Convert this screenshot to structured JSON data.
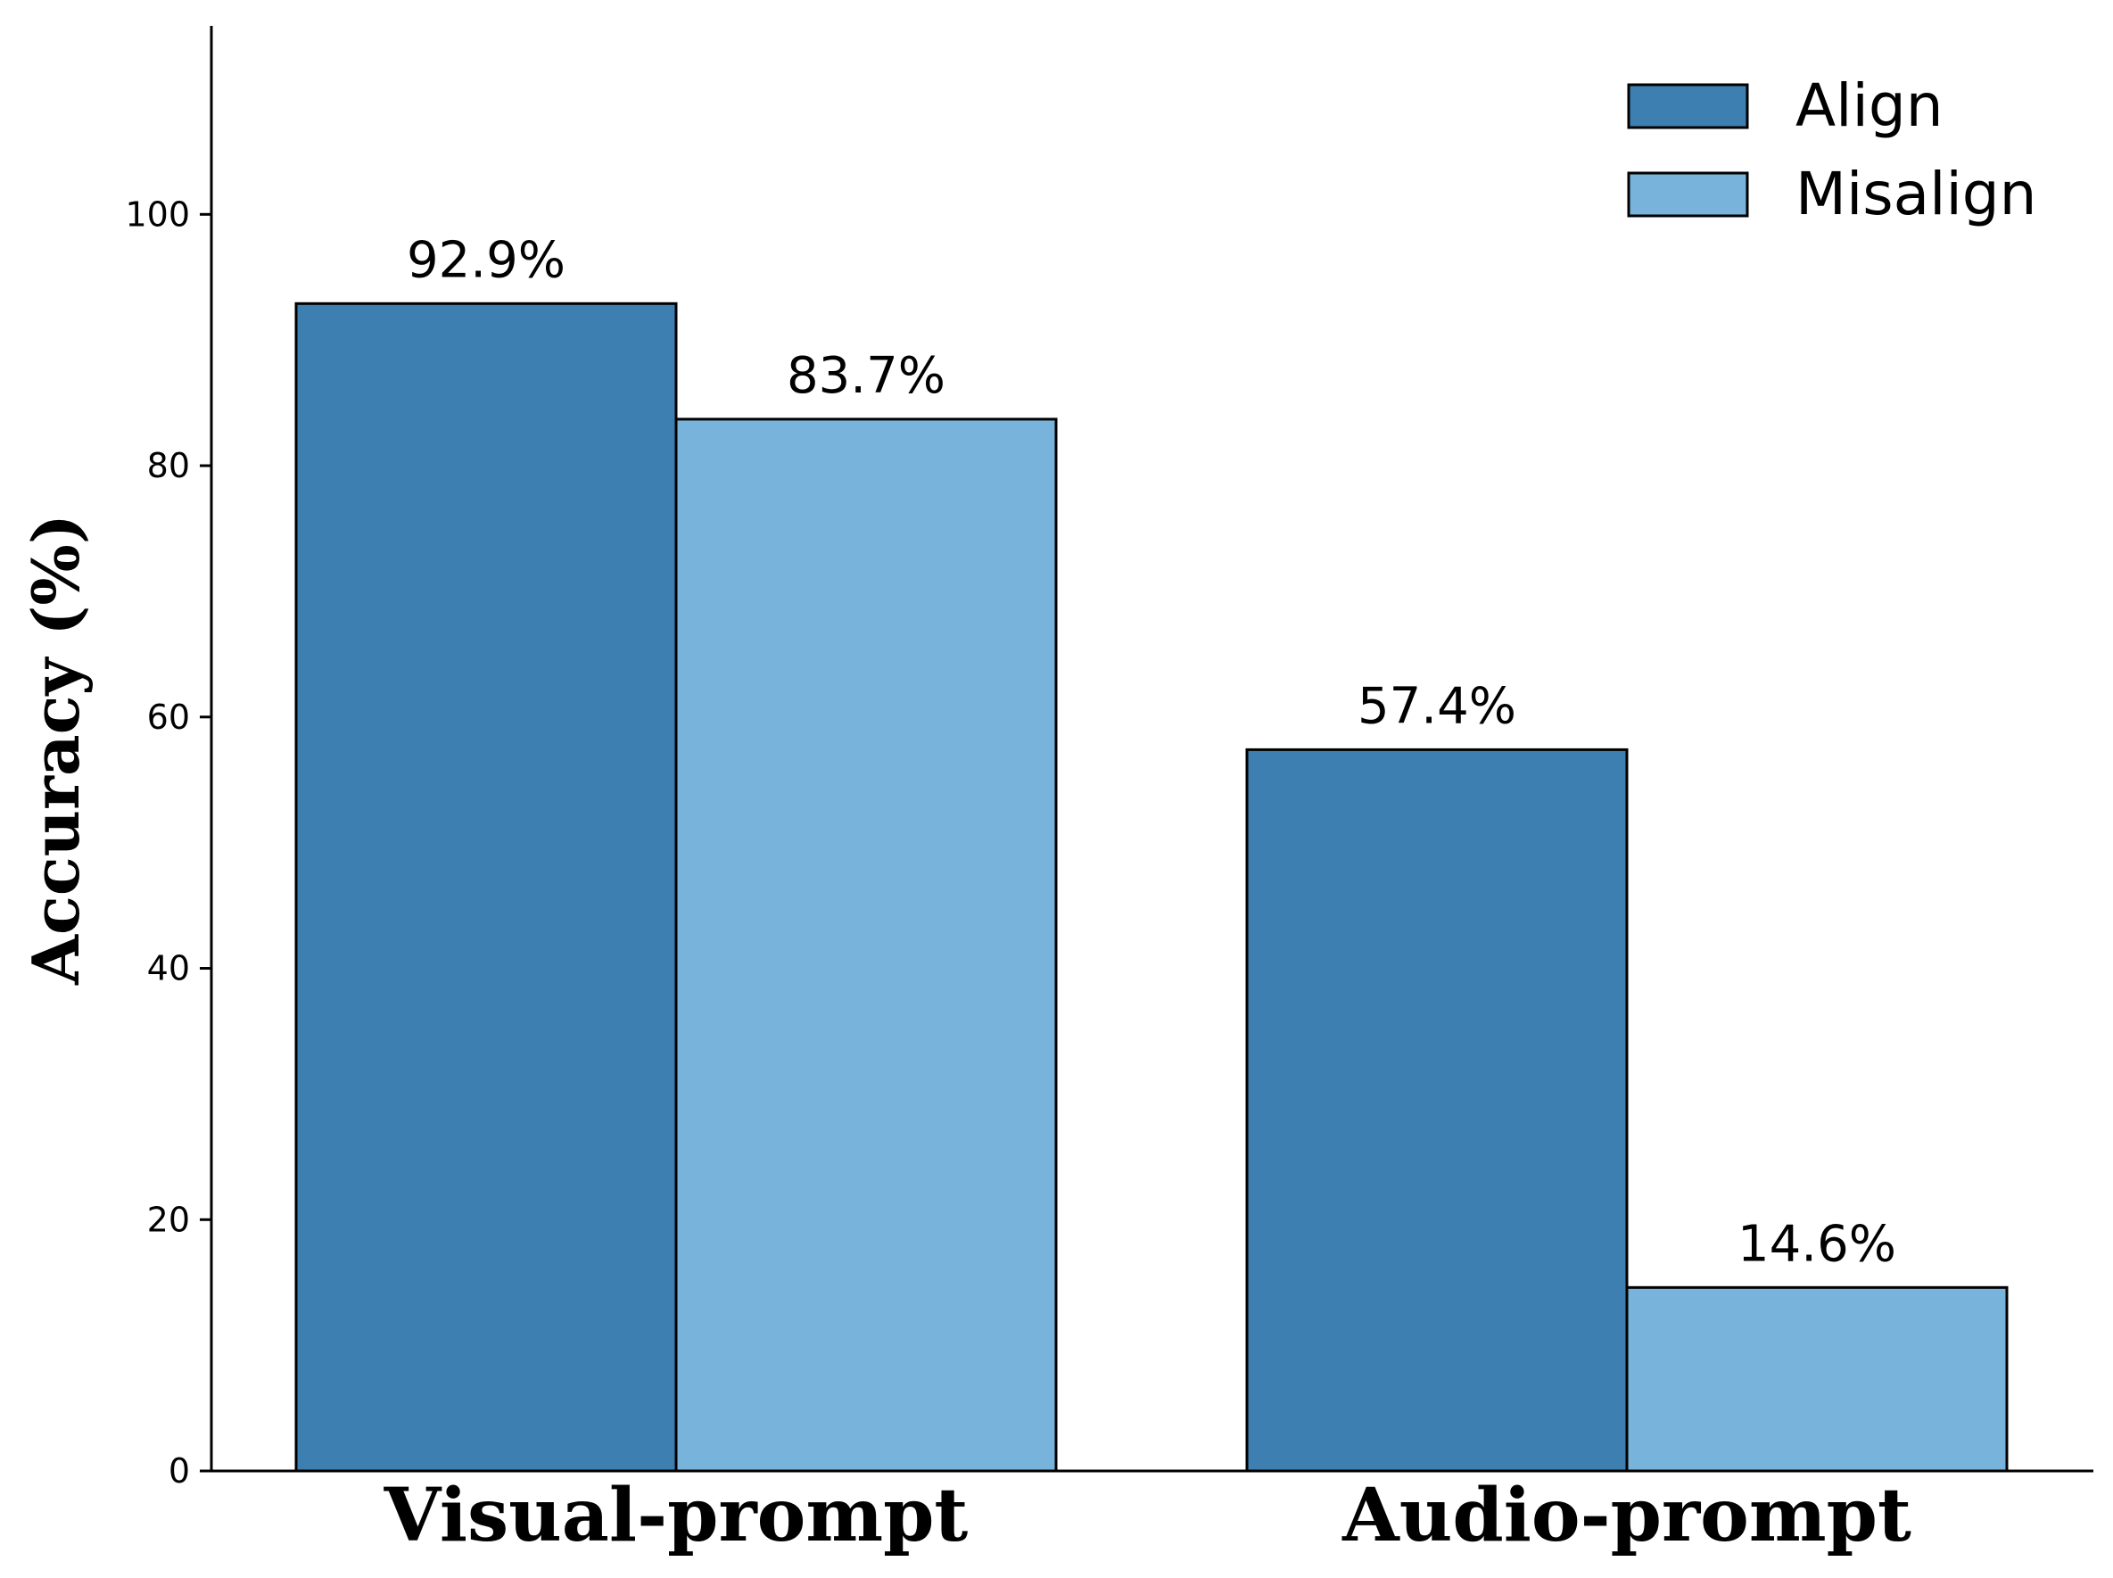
{
  "chart_data": {
    "type": "bar",
    "categories": [
      "Visual-prompt",
      "Audio-prompt"
    ],
    "series": [
      {
        "name": "Align",
        "values": [
          92.9,
          57.4
        ],
        "labels": [
          "92.9%",
          "57.4%"
        ],
        "color": "#3d7fb0"
      },
      {
        "name": "Misalign",
        "values": [
          83.7,
          14.6
        ],
        "labels": [
          "83.7%",
          "14.6%"
        ],
        "color": "#77b3da"
      }
    ],
    "ylabel": "Accuracy (%)",
    "ylim": [
      0,
      115
    ],
    "yticks": [
      0,
      20,
      40,
      60,
      80,
      100
    ],
    "ytick_labels": [
      "0",
      "20",
      "40",
      "60",
      "80",
      "100"
    ],
    "legend_position": "top-right",
    "grid": false
  }
}
